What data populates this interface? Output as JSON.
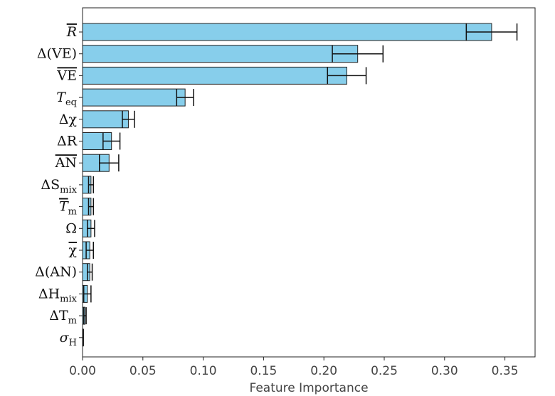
{
  "chart_data": {
    "type": "bar",
    "orientation": "horizontal",
    "title": "",
    "xlabel": "Feature Importance",
    "ylabel": "",
    "xlim": [
      0,
      0.375
    ],
    "xticks": [
      0.0,
      0.05,
      0.1,
      0.15,
      0.2,
      0.25,
      0.3,
      0.35
    ],
    "xtick_labels": [
      "0.00",
      "0.05",
      "0.10",
      "0.15",
      "0.20",
      "0.25",
      "0.30",
      "0.35"
    ],
    "grid": false,
    "bar_color": "#87ceeb",
    "edge_color": "#222222",
    "categories": [
      {
        "id": "r-bar",
        "base": "R",
        "sub": "",
        "over": true,
        "italic": true,
        "label": "R̄"
      },
      {
        "id": "delta-ve",
        "base": "Δ(VE)",
        "sub": "",
        "over": false,
        "italic": false,
        "label": "Δ(VE)"
      },
      {
        "id": "ve-bar",
        "base": "VE",
        "sub": "",
        "over": true,
        "italic": false,
        "label": "V̄Ē"
      },
      {
        "id": "t-eq",
        "base": "T",
        "sub": "eq",
        "over": false,
        "italic": true,
        "label": "T_eq"
      },
      {
        "id": "delta-chi",
        "base": "Δχ",
        "sub": "",
        "over": false,
        "italic": false,
        "label": "Δχ"
      },
      {
        "id": "delta-r",
        "base": "ΔR",
        "sub": "",
        "over": false,
        "italic": false,
        "label": "ΔR"
      },
      {
        "id": "an-bar",
        "base": "AN",
        "sub": "",
        "over": true,
        "italic": false,
        "label": "ĀN̄"
      },
      {
        "id": "delta-s-mix",
        "base": "ΔS",
        "sub": "mix",
        "over": false,
        "italic": false,
        "label": "ΔS_mix"
      },
      {
        "id": "t-m-bar",
        "base": "T",
        "sub": "m",
        "over": true,
        "italic": true,
        "label": "T̄_m"
      },
      {
        "id": "omega",
        "base": "Ω",
        "sub": "",
        "over": false,
        "italic": false,
        "label": "Ω"
      },
      {
        "id": "chi-bar",
        "base": "χ",
        "sub": "",
        "over": true,
        "italic": false,
        "label": "χ̄"
      },
      {
        "id": "delta-an",
        "base": "Δ(AN)",
        "sub": "",
        "over": false,
        "italic": false,
        "label": "Δ(AN)"
      },
      {
        "id": "delta-h-mix",
        "base": "ΔH",
        "sub": "mix",
        "over": false,
        "italic": false,
        "label": "ΔH_mix"
      },
      {
        "id": "delta-t-m",
        "base": "ΔT",
        "sub": "m",
        "over": false,
        "italic": false,
        "label": "ΔT_m"
      },
      {
        "id": "sigma-h",
        "base": "σ",
        "sub": "H",
        "over": false,
        "italic": true,
        "label": "σ_H"
      }
    ],
    "values": [
      0.339,
      0.228,
      0.219,
      0.085,
      0.038,
      0.024,
      0.022,
      0.007,
      0.007,
      0.007,
      0.006,
      0.006,
      0.004,
      0.002,
      0.0005
    ],
    "errors": [
      0.021,
      0.021,
      0.016,
      0.007,
      0.005,
      0.007,
      0.008,
      0.002,
      0.002,
      0.003,
      0.003,
      0.002,
      0.003,
      0.001,
      0.0002
    ]
  }
}
